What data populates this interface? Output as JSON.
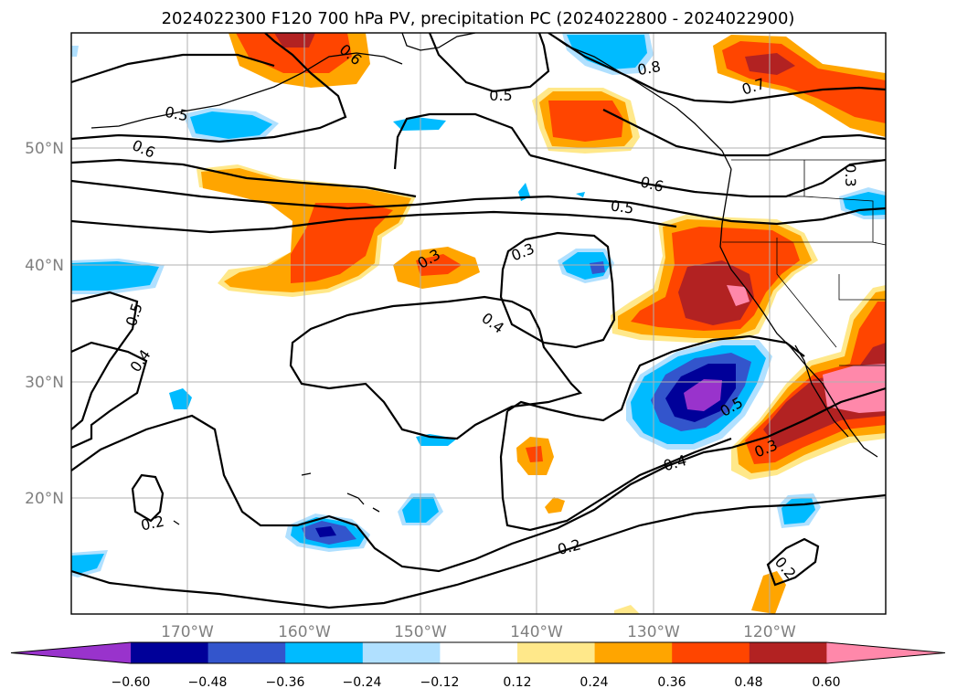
{
  "title": "2024022300 F120 700 hPa PV, precipitation PC (2024022800 - 2024022900)",
  "latitude_labels": [
    "50°N",
    "40°N",
    "30°N",
    "20°N"
  ],
  "longitude_labels": [
    "170°W",
    "160°W",
    "150°W",
    "140°W",
    "130°W",
    "120°W"
  ],
  "colorbar": {
    "tick_labels": [
      "−0.60",
      "−0.48",
      "−0.36",
      "−0.24",
      "−0.12",
      "0.12",
      "0.24",
      "0.36",
      "0.48",
      "0.60"
    ],
    "colors": [
      "#9933cc",
      "#000099",
      "#3355cc",
      "#00bbff",
      "#b0e0ff",
      "#ffffff",
      "#ffe88a",
      "#ffa500",
      "#ff4500",
      "#b22222",
      "#ff88aa"
    ]
  },
  "contour_labels": [
    {
      "id": "c1",
      "text": "0.5"
    },
    {
      "id": "c2",
      "text": "0.6"
    },
    {
      "id": "c3",
      "text": "0.5"
    },
    {
      "id": "c4",
      "text": "0.8"
    },
    {
      "id": "c5",
      "text": "0.7"
    },
    {
      "id": "c6",
      "text": "0.6"
    },
    {
      "id": "c7",
      "text": "0.5"
    },
    {
      "id": "c8",
      "text": "0.3"
    },
    {
      "id": "c9",
      "text": "0.3"
    },
    {
      "id": "c10",
      "text": "0.5"
    },
    {
      "id": "c11",
      "text": "0.4"
    },
    {
      "id": "c12",
      "text": "0.4"
    },
    {
      "id": "c13",
      "text": "0.5"
    },
    {
      "id": "c14",
      "text": "0.4"
    },
    {
      "id": "c15",
      "text": "0.3"
    },
    {
      "id": "c16",
      "text": "0.2"
    },
    {
      "id": "c17",
      "text": "0.2"
    },
    {
      "id": "c18",
      "text": "0.2"
    },
    {
      "id": "c19",
      "text": "0.3"
    },
    {
      "id": "c20",
      "text": "0.6"
    }
  ]
}
